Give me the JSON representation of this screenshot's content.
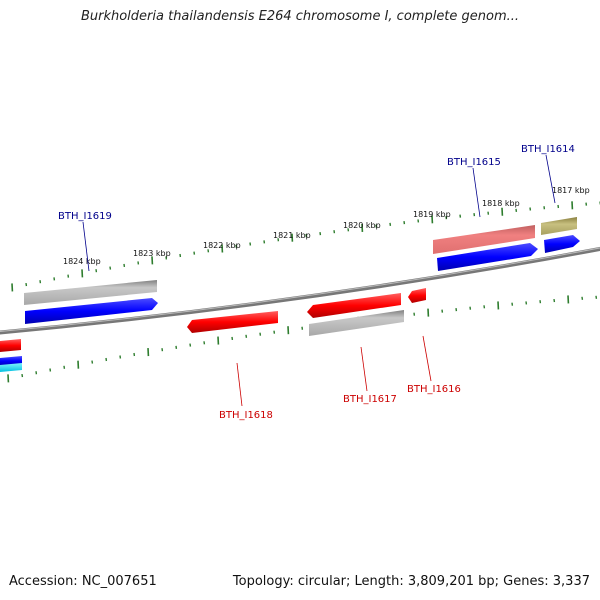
{
  "title": "Burkholderia thailandensis E264 chromosome I, complete genom...",
  "footer": {
    "accession": "Accession: NC_007651",
    "topology": "Topology: circular; Length: 3,809,201 bp; Genes: 3,337"
  },
  "ruler": [
    {
      "label": "1824 kbp"
    },
    {
      "label": "1823 kbp"
    },
    {
      "label": "1822 kbp"
    },
    {
      "label": "1821 kbp"
    },
    {
      "label": "1820 kbp"
    },
    {
      "label": "1819 kbp"
    },
    {
      "label": "1818 kbp"
    },
    {
      "label": "1817 kbp"
    }
  ],
  "gene_labels": [
    {
      "name": "BTH_I1619",
      "strand": "forward"
    },
    {
      "name": "BTH_I1615",
      "strand": "forward"
    },
    {
      "name": "BTH_I1614",
      "strand": "forward"
    },
    {
      "name": "BTH_I1618",
      "strand": "reverse"
    },
    {
      "name": "BTH_I1617",
      "strand": "reverse"
    },
    {
      "name": "BTH_I1616",
      "strand": "reverse"
    }
  ],
  "colors": {
    "forward_label": "#00008b",
    "reverse_label": "#cc0000",
    "ruler": "#2e7d2e",
    "backbone": "#777777",
    "gene_red": "#ff0000",
    "gene_blue": "#0000ff",
    "gene_gray": "#b0b0b0",
    "gene_pink": "#f08080",
    "gene_olive": "#b5ad6a",
    "gene_cyan": "#00e0ff"
  }
}
